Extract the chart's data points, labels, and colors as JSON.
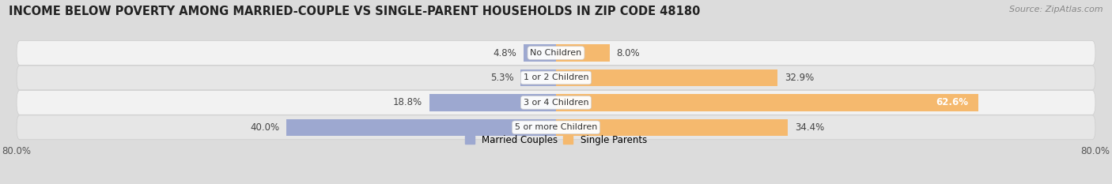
{
  "title": "INCOME BELOW POVERTY AMONG MARRIED-COUPLE VS SINGLE-PARENT HOUSEHOLDS IN ZIP CODE 48180",
  "source": "Source: ZipAtlas.com",
  "categories": [
    "No Children",
    "1 or 2 Children",
    "3 or 4 Children",
    "5 or more Children"
  ],
  "married_values": [
    4.8,
    5.3,
    18.8,
    40.0
  ],
  "single_values": [
    8.0,
    32.9,
    62.6,
    34.4
  ],
  "married_color": "#9da8d0",
  "single_color": "#f5b96e",
  "bar_height": 0.68,
  "xlim": [
    -80,
    80
  ],
  "background_color": "#dcdcdc",
  "row_color_light": "#f2f2f2",
  "row_color_dark": "#e6e6e6",
  "title_fontsize": 10.5,
  "source_fontsize": 8,
  "label_fontsize": 8.5,
  "category_fontsize": 8
}
